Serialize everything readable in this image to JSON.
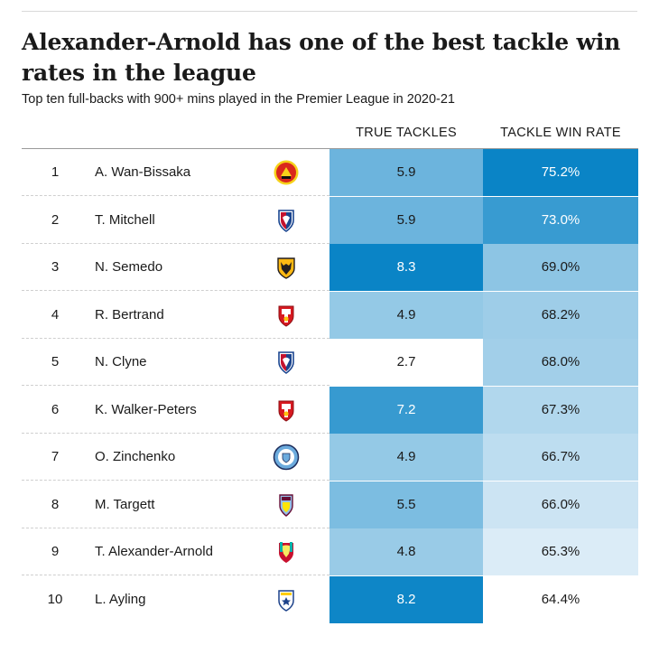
{
  "title": "Alexander-Arnold has one of the best tackle win rates in the league",
  "subtitle": "Top ten full-backs with 900+ mins played in the Premier League in 2020-21",
  "columns": {
    "true_tackles": "TRUE TACKLES",
    "tackle_win_rate": "TACKLE WIN RATE"
  },
  "colors": {
    "scale_dark": "#0a84c6",
    "scale_light": "#eef5fb",
    "separator": "#cfcfcf"
  },
  "chart_data": {
    "type": "table",
    "title": "Alexander-Arnold has one of the best tackle win rates in the league",
    "subtitle": "Top ten full-backs with 900+ mins played in the Premier League in 2020-21",
    "columns": [
      "TRUE TACKLES",
      "TACKLE WIN RATE"
    ],
    "rows": [
      {
        "rank": "1",
        "player": "A. Wan-Bissaka",
        "club_badge": "man-utd-badge-icon",
        "true_tackles": "5.9",
        "tackle_win_rate": "75.2%",
        "tackles_value": 5.9,
        "rate_value": 75.2
      },
      {
        "rank": "2",
        "player": "T. Mitchell",
        "club_badge": "crystal-palace-badge-icon",
        "true_tackles": "5.9",
        "tackle_win_rate": "73.0%",
        "tackles_value": 5.9,
        "rate_value": 73.0
      },
      {
        "rank": "3",
        "player": "N. Semedo",
        "club_badge": "wolves-badge-icon",
        "true_tackles": "8.3",
        "tackle_win_rate": "69.0%",
        "tackles_value": 8.3,
        "rate_value": 69.0
      },
      {
        "rank": "4",
        "player": "R. Bertrand",
        "club_badge": "southampton-badge-icon",
        "true_tackles": "4.9",
        "tackle_win_rate": "68.2%",
        "tackles_value": 4.9,
        "rate_value": 68.2
      },
      {
        "rank": "5",
        "player": "N. Clyne",
        "club_badge": "crystal-palace-badge-icon",
        "true_tackles": "2.7",
        "tackle_win_rate": "68.0%",
        "tackles_value": 2.7,
        "rate_value": 68.0
      },
      {
        "rank": "6",
        "player": "K. Walker-Peters",
        "club_badge": "southampton-badge-icon",
        "true_tackles": "7.2",
        "tackle_win_rate": "67.3%",
        "tackles_value": 7.2,
        "rate_value": 67.3
      },
      {
        "rank": "7",
        "player": "O. Zinchenko",
        "club_badge": "man-city-badge-icon",
        "true_tackles": "4.9",
        "tackle_win_rate": "66.7%",
        "tackles_value": 4.9,
        "rate_value": 66.7
      },
      {
        "rank": "8",
        "player": "M. Targett",
        "club_badge": "aston-villa-badge-icon",
        "true_tackles": "5.5",
        "tackle_win_rate": "66.0%",
        "tackles_value": 5.5,
        "rate_value": 66.0
      },
      {
        "rank": "9",
        "player": "T. Alexander-Arnold",
        "club_badge": "liverpool-badge-icon",
        "true_tackles": "4.8",
        "tackle_win_rate": "65.3%",
        "tackles_value": 4.8,
        "rate_value": 65.3
      },
      {
        "rank": "10",
        "player": "L. Ayling",
        "club_badge": "leeds-badge-icon",
        "true_tackles": "8.2",
        "tackle_win_rate": "64.4%",
        "tackles_value": 8.2,
        "rate_value": 64.4
      }
    ],
    "color_scales": {
      "true_tackles": {
        "min": 2.7,
        "max": 8.3
      },
      "tackle_win_rate": {
        "min": 64.4,
        "max": 75.2
      }
    }
  }
}
